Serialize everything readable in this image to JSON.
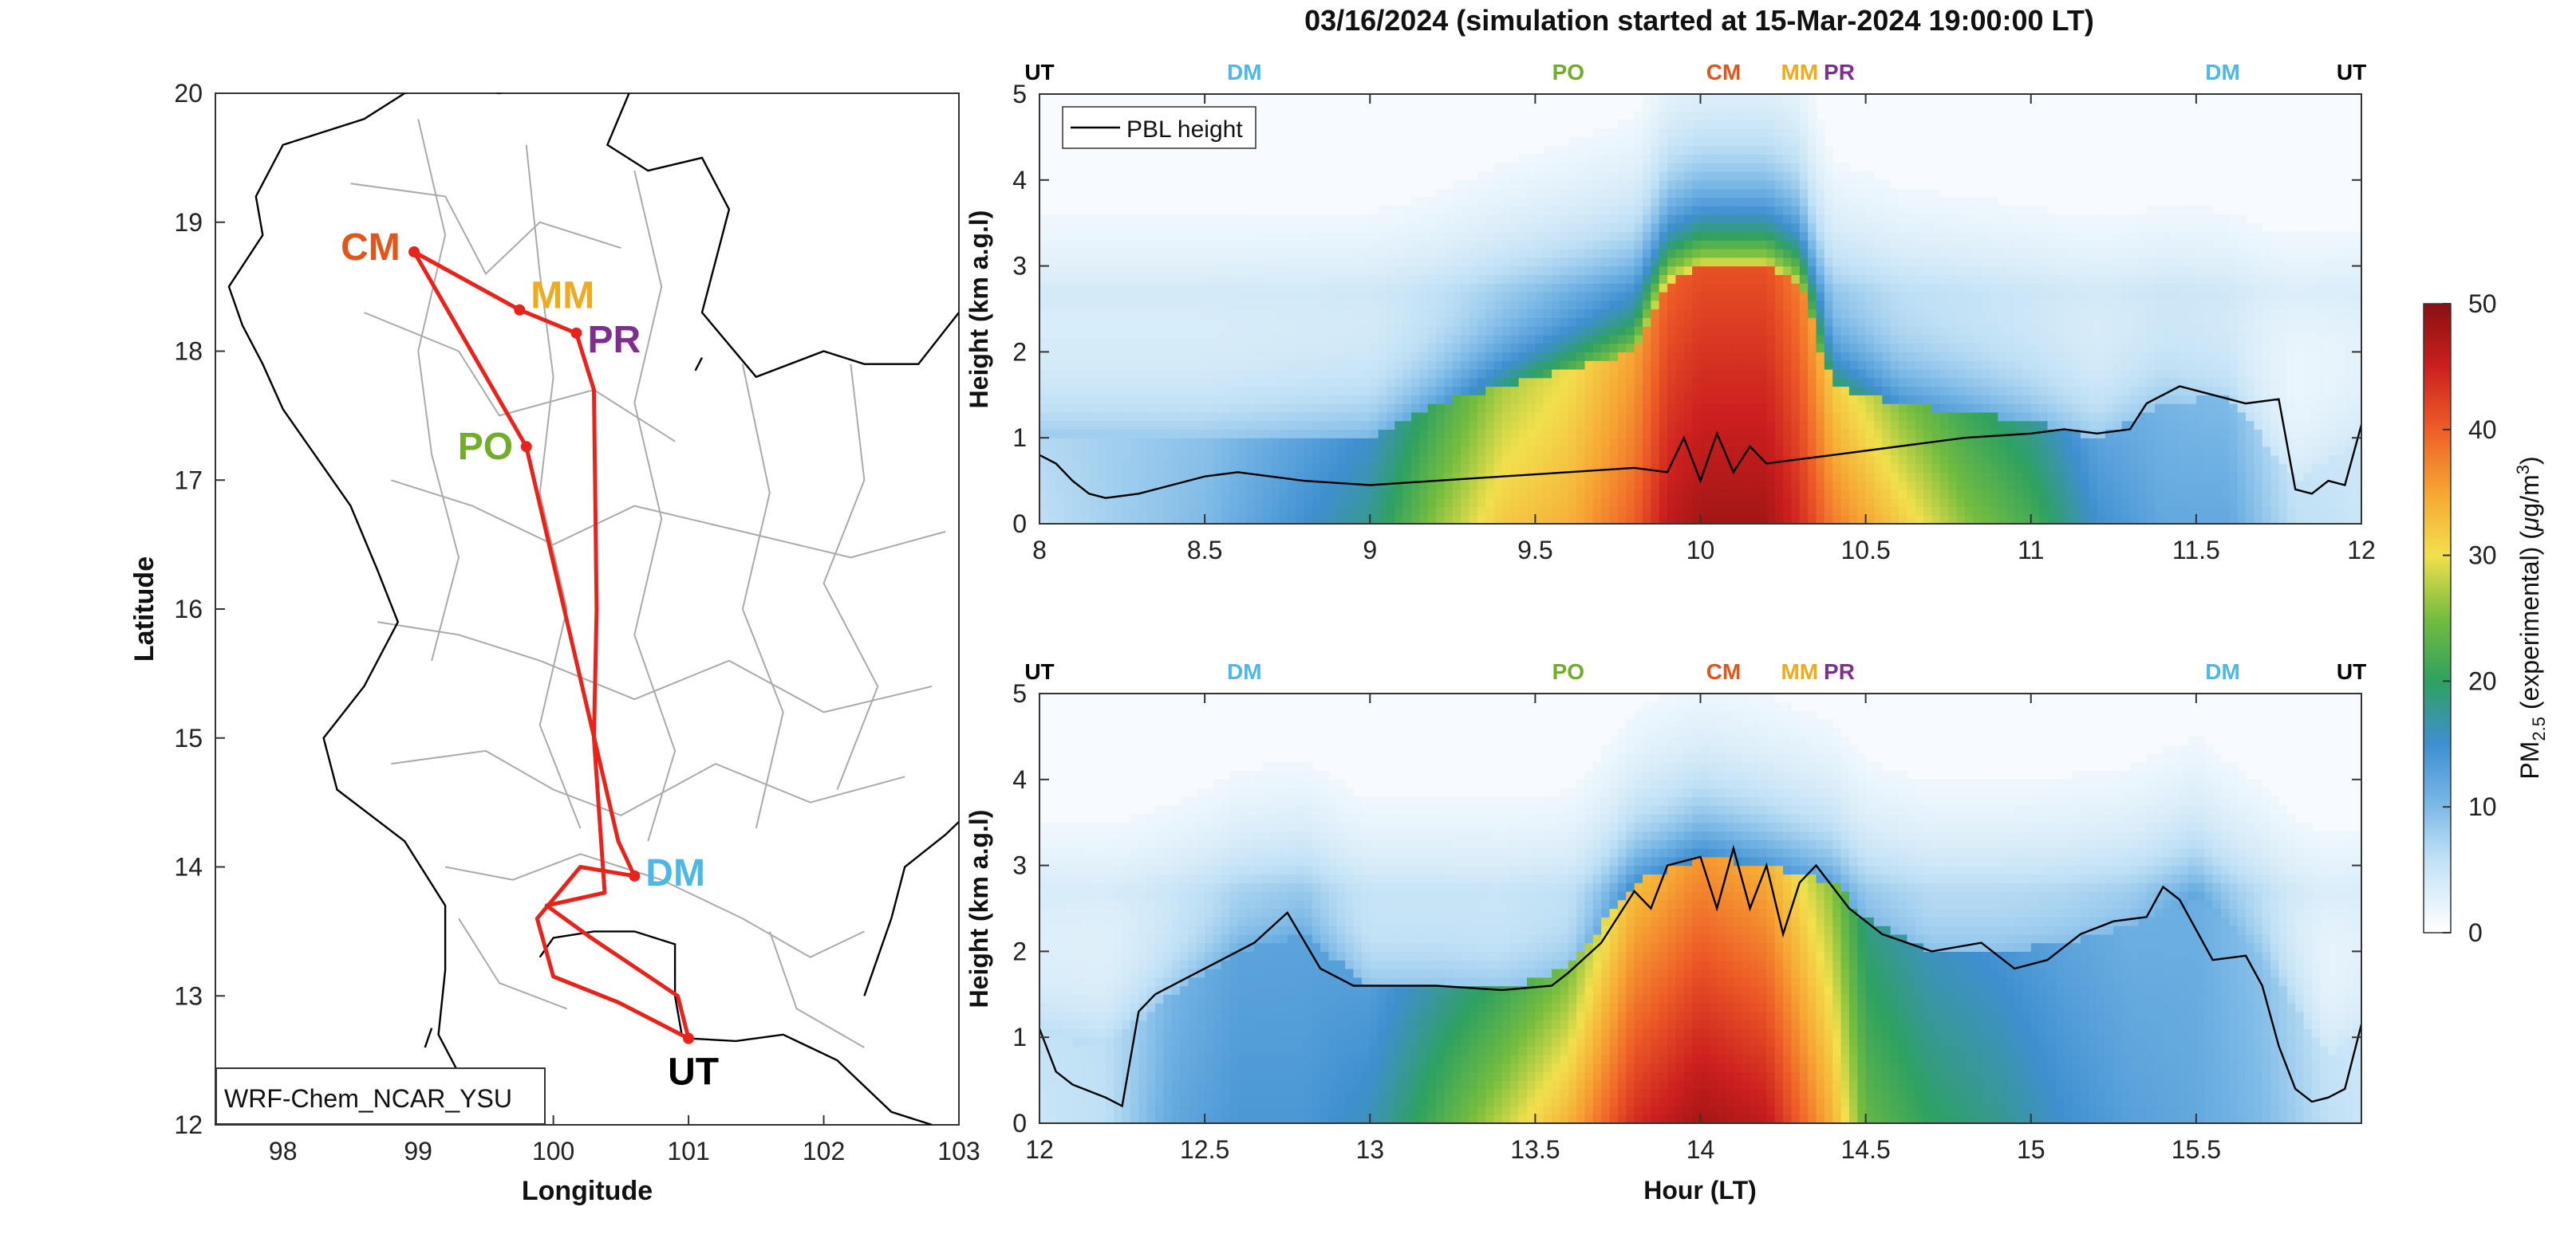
{
  "colors": {
    "route": "#e8231b",
    "pbl": "#000000",
    "UT": "#000000",
    "DM": "#4db8e8",
    "PO": "#72ad2a",
    "CM": "#e0561b",
    "MM": "#f0aa20",
    "PR": "#7e2f8e",
    "map_border": "#000000",
    "map_province": "#aaaaaa"
  },
  "chart_data": [
    {
      "type": "map",
      "xlabel": "Longitude",
      "ylabel": "Latitude",
      "xlim": [
        97.5,
        103
      ],
      "ylim": [
        12,
        20
      ],
      "xticks": [
        "98",
        "99",
        "100",
        "101",
        "102",
        "103"
      ],
      "yticks": [
        "12",
        "13",
        "14",
        "15",
        "16",
        "17",
        "18",
        "19",
        "20"
      ],
      "legend_box": "WRF-Chem_NCAR_YSU",
      "stations": [
        {
          "code": "CM",
          "lon": 98.97,
          "lat": 18.77
        },
        {
          "code": "MM",
          "lon": 99.75,
          "lat": 18.32
        },
        {
          "code": "PR",
          "lon": 100.17,
          "lat": 18.14
        },
        {
          "code": "PO",
          "lon": 99.8,
          "lat": 17.26
        },
        {
          "code": "DM",
          "lon": 100.6,
          "lat": 13.93
        },
        {
          "code": "UT",
          "lon": 101.0,
          "lat": 12.67
        }
      ],
      "route_lon": [
        101.0,
        100.48,
        100.0,
        99.88,
        100.2,
        100.6,
        100.48,
        99.8,
        98.97,
        99.75,
        100.17,
        100.3,
        100.32,
        100.3,
        100.38,
        99.95,
        100.28,
        100.92,
        101.0
      ],
      "route_lat": [
        12.67,
        12.95,
        13.15,
        13.6,
        14.0,
        13.93,
        14.2,
        17.26,
        18.77,
        18.32,
        18.14,
        17.7,
        16.0,
        15.0,
        13.8,
        13.7,
        13.45,
        13.0,
        12.67
      ]
    },
    {
      "type": "heatmap",
      "title": "03/16/2024 (simulation started at 15-Mar-2024 19:00:00 LT)",
      "xlabel": "",
      "ylabel": "Height (km a.g.l)",
      "xlim": [
        8,
        12
      ],
      "ylim": [
        0,
        5
      ],
      "xticks": [
        "8",
        "8.5",
        "9",
        "9.5",
        "10",
        "10.5",
        "11",
        "11.5",
        "12"
      ],
      "yticks": [
        "0",
        "1",
        "2",
        "3",
        "4",
        "5"
      ],
      "legend": "PBL height",
      "top_labels": [
        {
          "code": "UT",
          "x": 8.0
        },
        {
          "code": "DM",
          "x": 8.62
        },
        {
          "code": "PO",
          "x": 9.6
        },
        {
          "code": "CM",
          "x": 10.07
        },
        {
          "code": "MM",
          "x": 10.3
        },
        {
          "code": "PR",
          "x": 10.42
        },
        {
          "code": "DM",
          "x": 11.58
        },
        {
          "code": "UT",
          "x": 11.97
        }
      ],
      "pbl": {
        "x": [
          8.0,
          8.05,
          8.1,
          8.15,
          8.2,
          8.3,
          8.4,
          8.5,
          8.6,
          8.7,
          8.8,
          9.0,
          9.2,
          9.4,
          9.6,
          9.8,
          9.9,
          9.95,
          10.0,
          10.05,
          10.1,
          10.15,
          10.2,
          10.3,
          10.4,
          10.6,
          10.8,
          11.0,
          11.1,
          11.2,
          11.3,
          11.35,
          11.45,
          11.55,
          11.65,
          11.75,
          11.8,
          11.85,
          11.9,
          11.95,
          12.0
        ],
        "y": [
          0.8,
          0.7,
          0.5,
          0.35,
          0.3,
          0.35,
          0.45,
          0.55,
          0.6,
          0.55,
          0.5,
          0.45,
          0.5,
          0.55,
          0.6,
          0.65,
          0.6,
          1.0,
          0.5,
          1.05,
          0.6,
          0.9,
          0.7,
          0.75,
          0.8,
          0.9,
          1.0,
          1.05,
          1.1,
          1.05,
          1.1,
          1.4,
          1.6,
          1.5,
          1.4,
          1.45,
          0.4,
          0.35,
          0.5,
          0.45,
          1.15
        ]
      },
      "pm25_columns": {
        "x": [
          8.0,
          8.5,
          9.0,
          9.2,
          9.4,
          9.6,
          9.8,
          9.9,
          10.0,
          10.2,
          10.3,
          10.4,
          10.6,
          10.8,
          11.0,
          11.2,
          11.4,
          11.6,
          11.8,
          12.0
        ],
        "surface": [
          6,
          10,
          18,
          26,
          32,
          34,
          40,
          46,
          48,
          48,
          44,
          38,
          32,
          26,
          22,
          15,
          12,
          12,
          6,
          5
        ],
        "mixed_top_km": [
          1.0,
          1.0,
          1.0,
          1.4,
          1.6,
          1.8,
          2.0,
          2.8,
          3.0,
          3.0,
          2.8,
          1.6,
          1.4,
          1.3,
          1.2,
          1.0,
          1.4,
          1.5,
          0.5,
          1.0
        ],
        "aloft": [
          8,
          8,
          10,
          12,
          18,
          22,
          26,
          28,
          28,
          28,
          26,
          20,
          14,
          12,
          10,
          8,
          8,
          6,
          4,
          4
        ]
      }
    },
    {
      "type": "heatmap",
      "xlabel": "Hour (LT)",
      "ylabel": "Height (km a.g.l)",
      "xlim": [
        12,
        16
      ],
      "ylim": [
        0,
        5
      ],
      "xticks": [
        "12",
        "12.5",
        "13",
        "13.5",
        "14",
        "14.5",
        "15",
        "15.5"
      ],
      "yticks": [
        "0",
        "1",
        "2",
        "3",
        "4",
        "5"
      ],
      "top_labels": [
        {
          "code": "UT",
          "x": 12.0
        },
        {
          "code": "DM",
          "x": 12.62
        },
        {
          "code": "PO",
          "x": 13.6
        },
        {
          "code": "CM",
          "x": 14.07
        },
        {
          "code": "MM",
          "x": 14.3
        },
        {
          "code": "PR",
          "x": 14.42
        },
        {
          "code": "DM",
          "x": 15.58
        },
        {
          "code": "UT",
          "x": 15.97
        }
      ],
      "pbl": {
        "x": [
          12.0,
          12.05,
          12.1,
          12.2,
          12.25,
          12.3,
          12.35,
          12.45,
          12.55,
          12.65,
          12.75,
          12.85,
          12.95,
          13.05,
          13.2,
          13.4,
          13.55,
          13.6,
          13.7,
          13.8,
          13.85,
          13.9,
          14.0,
          14.05,
          14.1,
          14.15,
          14.2,
          14.25,
          14.3,
          14.35,
          14.45,
          14.55,
          14.7,
          14.85,
          14.95,
          15.05,
          15.15,
          15.25,
          15.35,
          15.4,
          15.45,
          15.55,
          15.65,
          15.7,
          15.75,
          15.8,
          15.85,
          15.9,
          15.95,
          16.0
        ],
        "y": [
          1.1,
          0.6,
          0.45,
          0.3,
          0.2,
          1.3,
          1.5,
          1.7,
          1.9,
          2.1,
          2.45,
          1.8,
          1.6,
          1.6,
          1.6,
          1.55,
          1.6,
          1.75,
          2.1,
          2.7,
          2.5,
          3.0,
          3.1,
          2.5,
          3.2,
          2.5,
          3.0,
          2.2,
          2.8,
          3.0,
          2.5,
          2.2,
          2.0,
          2.1,
          1.8,
          1.9,
          2.2,
          2.35,
          2.4,
          2.75,
          2.6,
          1.9,
          1.95,
          1.6,
          0.9,
          0.4,
          0.25,
          0.3,
          0.4,
          1.15
        ]
      },
      "pm25_columns": {
        "x": [
          12.0,
          12.2,
          12.4,
          12.6,
          12.8,
          13.0,
          13.2,
          13.4,
          13.6,
          13.8,
          14.0,
          14.2,
          14.4,
          14.5,
          14.7,
          14.9,
          15.1,
          15.3,
          15.5,
          15.7,
          15.9,
          16.0
        ],
        "surface": [
          5,
          6,
          12,
          14,
          14,
          16,
          22,
          28,
          34,
          44,
          48,
          46,
          34,
          24,
          20,
          18,
          15,
          13,
          12,
          10,
          6,
          5
        ],
        "mixed_top_km": [
          1.0,
          0.9,
          1.5,
          2.0,
          2.2,
          1.6,
          1.6,
          1.55,
          1.8,
          2.8,
          3.1,
          3.0,
          2.8,
          2.4,
          2.0,
          2.0,
          2.1,
          2.3,
          2.6,
          1.9,
          0.8,
          1.1
        ],
        "aloft": [
          6,
          6,
          8,
          10,
          10,
          8,
          8,
          8,
          8,
          12,
          14,
          12,
          10,
          8,
          8,
          8,
          8,
          8,
          10,
          8,
          4,
          4
        ]
      }
    },
    {
      "type": "colorbar",
      "label_main": "PM",
      "label_sub": "2.5",
      "label_rest": " (experimental) (",
      "label_mu": "μ",
      "label_unit": "g/m",
      "label_sup": "3",
      "label_close": ")",
      "ticks": [
        "0",
        "10",
        "20",
        "30",
        "40",
        "50"
      ],
      "range": [
        0,
        50
      ]
    }
  ]
}
